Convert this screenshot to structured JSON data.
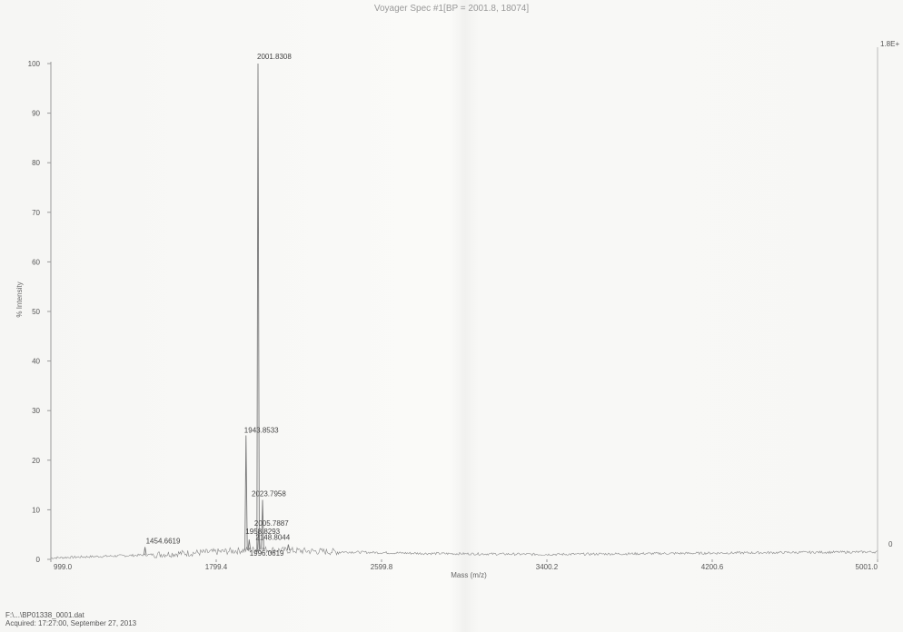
{
  "chart_data": {
    "type": "line",
    "title": "Voyager Spec #1[BP = 2001.8, 18074]",
    "xlabel": "Mass (m/z)",
    "ylabel": "% Intensity",
    "xlim": [
      999.0,
      5001.0
    ],
    "ylim": [
      0,
      100
    ],
    "x_ticks": [
      "999.0",
      "1799.4",
      "2599.8",
      "3400.2",
      "4200.6",
      "5001.0"
    ],
    "x_tick_values": [
      999.0,
      1799.4,
      2599.8,
      3400.2,
      4200.6,
      5001.0
    ],
    "y_ticks": [
      0,
      10,
      20,
      30,
      40,
      50,
      60,
      70,
      80,
      90,
      100
    ],
    "right_axis_label": "1.8E+",
    "right_axis_zero": "0",
    "grid": false,
    "peaks": [
      {
        "mz": 1454.6619,
        "label": "1454.6619",
        "intensity": 2.5
      },
      {
        "mz": 1943.8533,
        "label": "1943.8533",
        "intensity": 25
      },
      {
        "mz": 1958.8293,
        "label": "1958.8293",
        "intensity": 4
      },
      {
        "mz": 1996.0619,
        "label": "1996.0619",
        "intensity": 1.5
      },
      {
        "mz": 2001.8308,
        "label": "2001.8308",
        "intensity": 100
      },
      {
        "mz": 2005.7887,
        "label": "2005.7887",
        "intensity": 6
      },
      {
        "mz": 2023.7958,
        "label": "2023.7958",
        "intensity": 12
      },
      {
        "mz": 2148.8044,
        "label": "2148.8044",
        "intensity": 3
      }
    ],
    "baseline": [
      {
        "mz": 999.0,
        "intensity": 0.3
      },
      {
        "mz": 1400.0,
        "intensity": 0.8
      },
      {
        "mz": 1800.0,
        "intensity": 1.5
      },
      {
        "mz": 2000.0,
        "intensity": 2.0
      },
      {
        "mz": 2300.0,
        "intensity": 1.6
      },
      {
        "mz": 2800.0,
        "intensity": 1.2
      },
      {
        "mz": 3400.0,
        "intensity": 1.0
      },
      {
        "mz": 4000.0,
        "intensity": 1.2
      },
      {
        "mz": 4600.0,
        "intensity": 1.4
      },
      {
        "mz": 5001.0,
        "intensity": 1.5
      }
    ]
  },
  "footer": {
    "file": "F:\\...\\BP01338_0001.dat",
    "acquired": "Acquired: 17:27:00, September 27, 2013"
  }
}
